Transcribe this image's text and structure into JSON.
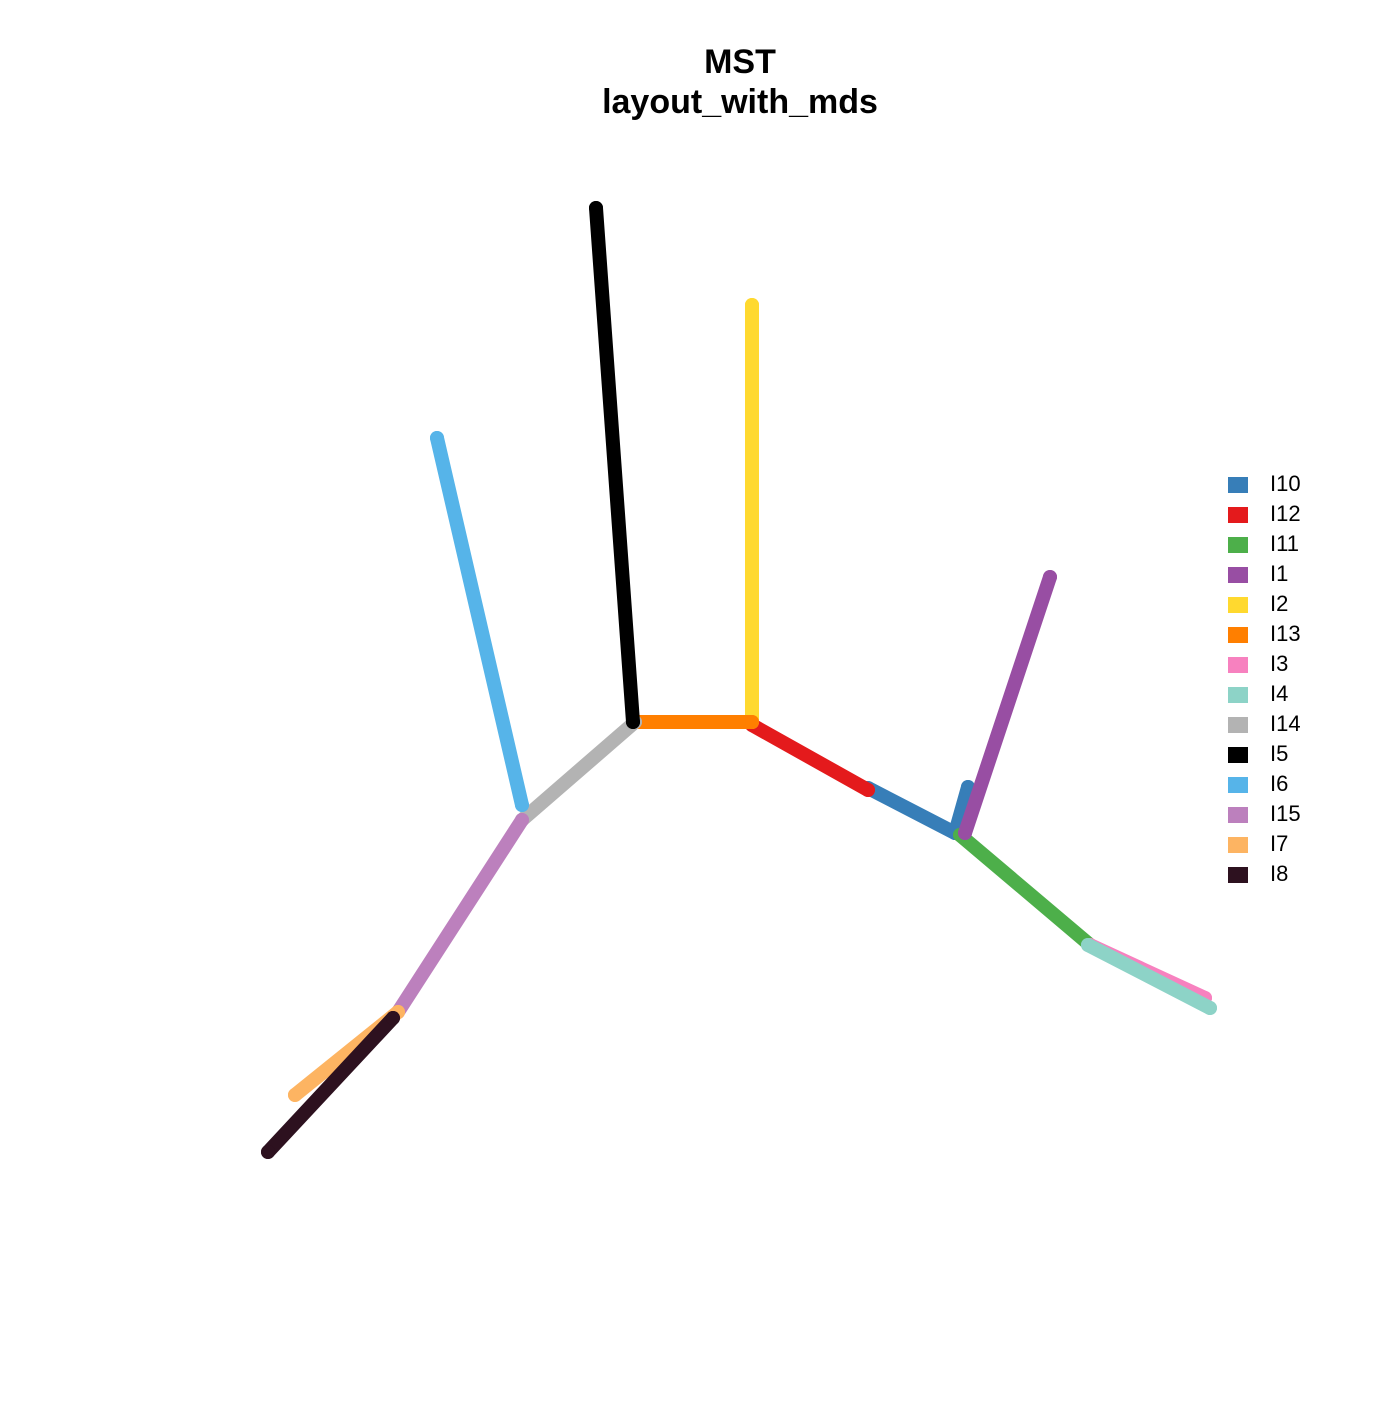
{
  "chart_data": {
    "type": "mst",
    "title": "MST",
    "subtitle": "layout_with_mds",
    "series": [
      {
        "name": "I10",
        "color": "#377EB8",
        "x": [
          1.68,
          2.55,
          2.68
        ],
        "y": [
          -0.88,
          -1.33,
          -0.87
        ]
      },
      {
        "name": "I12",
        "color": "#E41A1C",
        "x": [
          0.52,
          1.68
        ],
        "y": [
          -0.25,
          -0.9
        ]
      },
      {
        "name": "I11",
        "color": "#4DAF4A",
        "x": [
          2.6,
          3.9
        ],
        "y": [
          -1.35,
          -2.45
        ]
      },
      {
        "name": "I1",
        "color": "#984EA3",
        "x": [
          2.65,
          3.5
        ],
        "y": [
          -1.33,
          1.23
        ]
      },
      {
        "name": "I2",
        "color": "#FFD92F",
        "x": [
          0.52,
          0.52
        ],
        "y": [
          -0.22,
          3.95
        ]
      },
      {
        "name": "I13",
        "color": "#FF7F00",
        "x": [
          -0.65,
          0.52
        ],
        "y": [
          -0.22,
          -0.22
        ]
      },
      {
        "name": "I3",
        "color": "#F781BF",
        "x": [
          3.9,
          5.05
        ],
        "y": [
          -2.45,
          -2.98
        ]
      },
      {
        "name": "I4",
        "color": "#8DD3C7",
        "x": [
          3.88,
          5.1
        ],
        "y": [
          -2.45,
          -3.08
        ]
      },
      {
        "name": "I14",
        "color": "#B3B3B3",
        "x": [
          -1.78,
          -0.65
        ],
        "y": [
          -1.2,
          -0.22
        ]
      },
      {
        "name": "I5",
        "color": "#000000",
        "x": [
          -0.67,
          -1.04
        ],
        "y": [
          -0.22,
          4.92
        ]
      },
      {
        "name": "I6",
        "color": "#56B4E9",
        "x": [
          -1.78,
          -2.63
        ],
        "y": [
          -1.05,
          2.62
        ]
      },
      {
        "name": "I15",
        "color": "#BC80BD",
        "x": [
          -1.78,
          -3.02
        ],
        "y": [
          -1.2,
          -3.12
        ]
      },
      {
        "name": "I7",
        "color": "#FDB462",
        "x": [
          -3.02,
          -4.05
        ],
        "y": [
          -3.12,
          -3.95
        ]
      },
      {
        "name": "I8",
        "color": "#2D111F",
        "x": [
          -3.07,
          -4.32
        ],
        "y": [
          -3.18,
          -4.52
        ]
      }
    ]
  }
}
